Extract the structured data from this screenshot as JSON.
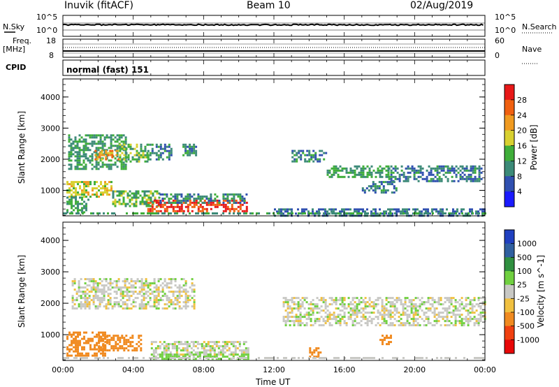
{
  "header": {
    "radar": "Inuvik (fitACF)",
    "beam": "Beam 10",
    "date": "02/Aug/2019"
  },
  "noise_panel": {
    "left_label": "N.Sky",
    "right_label": "N.Search",
    "left_ticks": [
      "10^5",
      "10^0"
    ],
    "right_ticks": [
      "10^5",
      "10^0"
    ]
  },
  "freq_panel": {
    "left_label_top": "Freq.",
    "left_label_unit": "[MHz]",
    "left_ticks": [
      "18",
      "8"
    ],
    "right_label": "Nave",
    "right_ticks": [
      "60",
      "0"
    ]
  },
  "cpid_panel": {
    "label": "CPID",
    "value": "normal (fast) 151"
  },
  "x_axis": {
    "title": "Time UT",
    "ticks": [
      "00:00",
      "04:00",
      "08:00",
      "12:00",
      "16:00",
      "20:00",
      "00:00"
    ]
  },
  "chart_data": [
    {
      "type": "heatmap",
      "name": "power",
      "ylabel": "Slant Range [km]",
      "yticks": [
        "1000",
        "2000",
        "3000",
        "4000"
      ],
      "ylim": [
        180,
        4580
      ],
      "xlim_hours": [
        0,
        24
      ],
      "colorbar": {
        "label": "Power [dB]",
        "ticks": [
          "4",
          "8",
          "12",
          "16",
          "20",
          "24",
          "28"
        ],
        "colors": [
          "#1a1aff",
          "#3050b0",
          "#3c8a78",
          "#3fae3a",
          "#d8d030",
          "#f09a20",
          "#f06010",
          "#e81818"
        ]
      },
      "regions": [
        {
          "t0": 0.3,
          "t1": 3.6,
          "r0": 1700,
          "r1": 2800,
          "value": 12
        },
        {
          "t0": 1.8,
          "t1": 3.2,
          "r0": 2000,
          "r1": 2300,
          "value": 22
        },
        {
          "t0": 3.2,
          "t1": 4.8,
          "r0": 1900,
          "r1": 2500,
          "value": 14
        },
        {
          "t0": 4.8,
          "t1": 6.2,
          "r0": 2000,
          "r1": 2500,
          "value": 10
        },
        {
          "t0": 6.8,
          "t1": 7.6,
          "r0": 2100,
          "r1": 2500,
          "value": 10
        },
        {
          "t0": 0.2,
          "t1": 2.8,
          "r0": 800,
          "r1": 1300,
          "value": 18
        },
        {
          "t0": 2.8,
          "t1": 5.5,
          "r0": 500,
          "r1": 1000,
          "value": 14
        },
        {
          "t0": 0.2,
          "t1": 1.5,
          "r0": 300,
          "r1": 800,
          "value": 12
        },
        {
          "t0": 4.8,
          "t1": 10.5,
          "r0": 300,
          "r1": 700,
          "value": 28
        },
        {
          "t0": 5.5,
          "t1": 10.5,
          "r0": 600,
          "r1": 900,
          "value": 10
        },
        {
          "t0": 13.0,
          "t1": 15.0,
          "r0": 1900,
          "r1": 2300,
          "value": 10
        },
        {
          "t0": 15.0,
          "t1": 18.5,
          "r0": 1400,
          "r1": 1800,
          "value": 12
        },
        {
          "t0": 18.5,
          "t1": 23.8,
          "r0": 1300,
          "r1": 1800,
          "value": 9
        },
        {
          "t0": 17.0,
          "t1": 19.0,
          "r0": 900,
          "r1": 1300,
          "value": 9
        },
        {
          "t0": 12.0,
          "t1": 24.0,
          "r0": 200,
          "r1": 420,
          "value": 8
        }
      ]
    },
    {
      "type": "heatmap",
      "name": "velocity",
      "ylabel": "Slant Range [km]",
      "yticks": [
        "1000",
        "2000",
        "3000",
        "4000"
      ],
      "ylim": [
        180,
        4580
      ],
      "xlim_hours": [
        0,
        24
      ],
      "colorbar": {
        "label": "Velocity [m s^-1]",
        "ticks": [
          "1000",
          "500",
          "100",
          "25",
          "-25",
          "-100",
          "-500",
          "-1000"
        ],
        "colors": [
          "#2040c0",
          "#3060a0",
          "#309040",
          "#70d040",
          "#c8c8c4",
          "#f0c040",
          "#f08a20",
          "#f04010",
          "#e80808"
        ]
      },
      "regions": [
        {
          "t0": 0.5,
          "t1": 7.5,
          "r0": 1800,
          "r1": 2800,
          "value": 0
        },
        {
          "t0": 12.5,
          "t1": 24.0,
          "r0": 1300,
          "r1": 2200,
          "value": 0
        },
        {
          "t0": 5.0,
          "t1": 10.5,
          "r0": 380,
          "r1": 800,
          "value": 0
        },
        {
          "t0": 0.2,
          "t1": 2.5,
          "r0": 300,
          "r1": 1100,
          "value": -300
        },
        {
          "t0": 2.0,
          "t1": 4.5,
          "r0": 500,
          "r1": 1000,
          "value": -150
        },
        {
          "t0": 5.0,
          "t1": 10.5,
          "r0": 200,
          "r1": 400,
          "value": 60
        },
        {
          "t0": 14.0,
          "t1": 14.7,
          "r0": 300,
          "r1": 600,
          "value": -300
        },
        {
          "t0": 18.0,
          "t1": 18.6,
          "r0": 700,
          "r1": 1000,
          "value": -300
        }
      ]
    }
  ],
  "colors": {
    "axis": "#000000",
    "background": "#ffffff"
  }
}
